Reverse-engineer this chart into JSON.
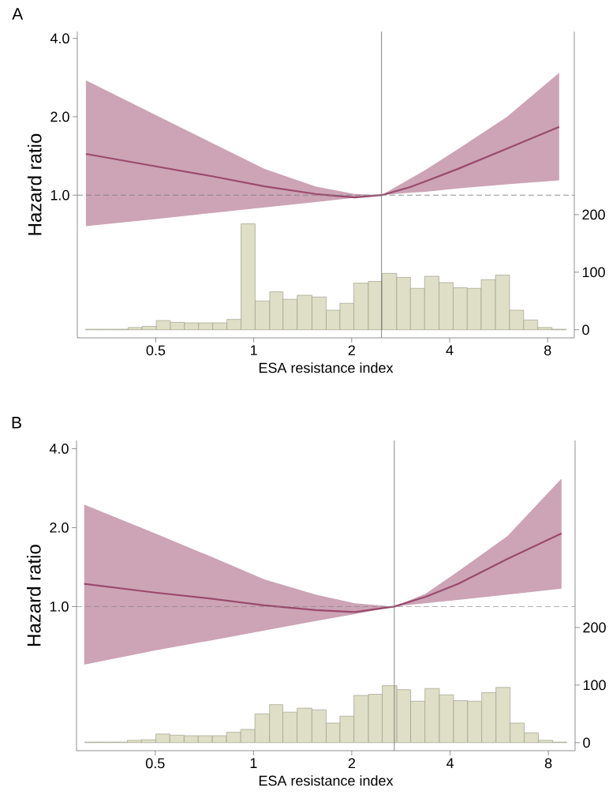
{
  "chart_data": [
    {
      "type": "line",
      "title": "A",
      "xlabel": "ESA resistance index",
      "ylabel": "Hazard ratio",
      "log": "xy",
      "xlim": [
        0.287,
        9.66
      ],
      "xticks": [
        0.5,
        1,
        2,
        4,
        8
      ],
      "ylim": [
        0.283,
        4.25
      ],
      "yticks": [
        {
          "value": 1,
          "label": "1.0"
        },
        {
          "value": 2,
          "label": "2.0"
        },
        {
          "value": 4,
          "label": "4.0"
        }
      ],
      "y2lim": [
        -14,
        518
      ],
      "y2ticks": [
        0,
        100,
        200
      ],
      "ref_lines": [
        {
          "axis": "y",
          "value": 1,
          "color": "#808080",
          "line_style": "dashed"
        },
        {
          "axis": "x",
          "value": 2.47,
          "color": "#707070",
          "line_style": "solid"
        }
      ],
      "series": [
        {
          "color": "#9a4a6e",
          "x": [
            0.305,
            0.5,
            0.75,
            1.08,
            1.55,
            2.04,
            2.47,
            3.0,
            3.37,
            4.23,
            6.0,
            8.68
          ],
          "values": [
            1.44,
            1.29,
            1.18,
            1.08,
            1.01,
            0.98,
            1.0,
            1.07,
            1.13,
            1.26,
            1.51,
            1.83
          ],
          "lower": [
            0.76,
            0.81,
            0.855,
            0.897,
            0.94,
            0.977,
            1.0,
            1.02,
            1.03,
            1.06,
            1.1,
            1.14
          ],
          "upper": [
            2.76,
            2.03,
            1.58,
            1.26,
            1.08,
            1.01,
            1.0,
            1.15,
            1.25,
            1.5,
            2.0,
            2.95
          ]
        },
        {
          "type": "histogram",
          "axis": "y2",
          "color": "#dedfc6",
          "bins": [
            0.304,
            0.336,
            0.372,
            0.411,
            0.454,
            0.502,
            0.554,
            0.613,
            0.677,
            0.748,
            0.827,
            0.914,
            1.01,
            1.12,
            1.23,
            1.36,
            1.51,
            1.67,
            1.84,
            2.03,
            2.25,
            2.48,
            2.75,
            3.03,
            3.35,
            3.71,
            4.1,
            4.53,
            5.0,
            5.53,
            6.11,
            6.75,
            7.46,
            8.25,
            9.12
          ],
          "values": [
            1,
            1,
            1,
            4,
            6,
            16,
            13,
            12,
            12,
            12,
            18,
            184,
            50,
            66,
            53,
            60,
            57,
            34,
            46,
            81,
            84,
            98,
            91,
            72,
            93,
            82,
            73,
            72,
            87,
            95,
            34,
            17,
            4,
            1
          ]
        }
      ]
    },
    {
      "type": "line",
      "title": "B",
      "xlabel": "ESA resistance index",
      "ylabel": "Hazard ratio",
      "log": "xy",
      "xlim": [
        0.287,
        9.66
      ],
      "xticks": [
        0.5,
        1,
        2,
        4,
        8
      ],
      "ylim": [
        0.282,
        4.3
      ],
      "yticks": [
        {
          "value": 1,
          "label": "1.0"
        },
        {
          "value": 2,
          "label": "2.0"
        },
        {
          "value": 4,
          "label": "4.0"
        }
      ],
      "y2lim": [
        -14,
        525
      ],
      "y2ticks": [
        0,
        100,
        200
      ],
      "ref_lines": [
        {
          "axis": "y",
          "value": 1,
          "color": "#808080",
          "line_style": "dashed"
        },
        {
          "axis": "x",
          "value": 2.7,
          "color": "#707070",
          "line_style": "solid"
        }
      ],
      "series": [
        {
          "color": "#9a4a6e",
          "x": [
            0.303,
            0.5,
            0.75,
            1.08,
            1.55,
            2.04,
            2.7,
            3.37,
            4.23,
            6.0,
            8.78
          ],
          "values": [
            1.22,
            1.13,
            1.07,
            1.01,
            0.97,
            0.953,
            1.0,
            1.09,
            1.22,
            1.52,
            1.9
          ],
          "lower": [
            0.6,
            0.68,
            0.745,
            0.81,
            0.88,
            0.935,
            1.0,
            1.03,
            1.06,
            1.11,
            1.17
          ],
          "upper": [
            2.45,
            1.9,
            1.54,
            1.27,
            1.11,
            1.03,
            1.0,
            1.12,
            1.36,
            1.86,
            3.08
          ]
        },
        {
          "type": "histogram",
          "axis": "y2",
          "color": "#dedfc6",
          "bins": [
            0.304,
            0.336,
            0.372,
            0.411,
            0.454,
            0.502,
            0.554,
            0.613,
            0.677,
            0.748,
            0.827,
            0.914,
            1.01,
            1.12,
            1.23,
            1.36,
            1.51,
            1.67,
            1.84,
            2.03,
            2.25,
            2.48,
            2.75,
            3.03,
            3.35,
            3.71,
            4.1,
            4.53,
            5.0,
            5.53,
            6.11,
            6.75,
            7.46,
            8.25,
            9.12
          ],
          "values": [
            1,
            1,
            1,
            4,
            5,
            15,
            13,
            12,
            12,
            12,
            18,
            23,
            50,
            66,
            53,
            60,
            57,
            34,
            46,
            82,
            84,
            99,
            92,
            72,
            94,
            83,
            73,
            72,
            87,
            96,
            34,
            17,
            4,
            1
          ]
        }
      ]
    }
  ]
}
